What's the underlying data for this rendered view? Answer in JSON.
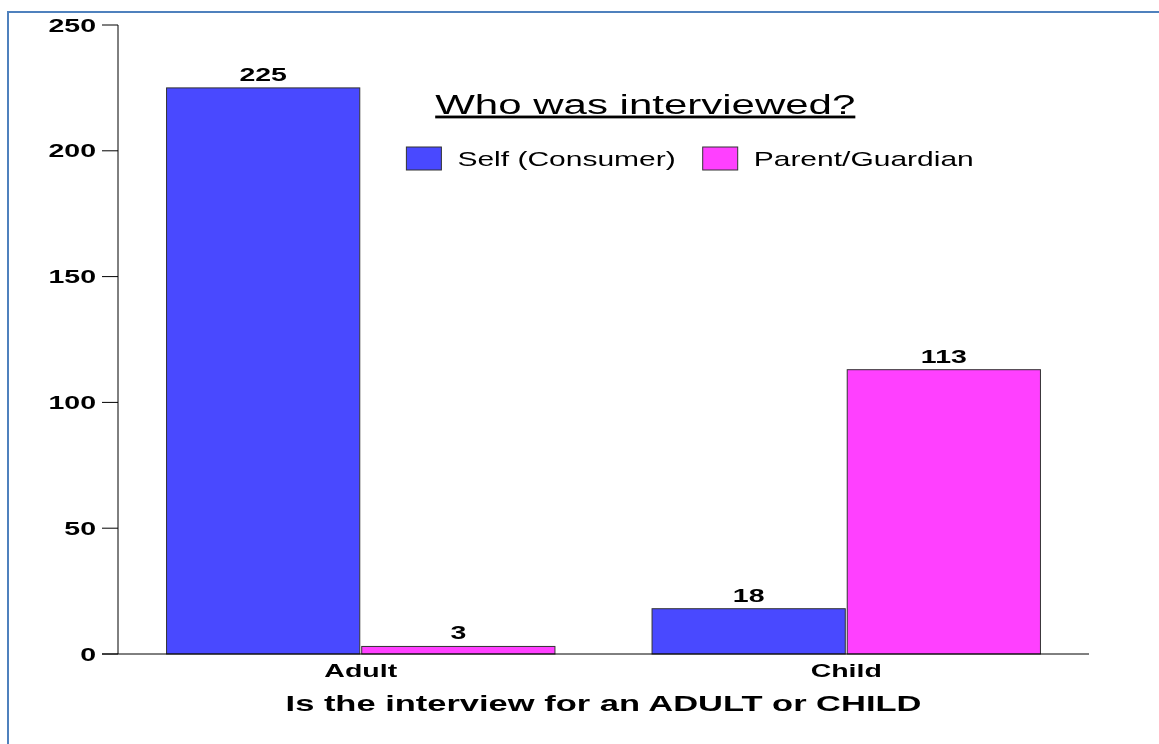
{
  "chart_data": {
    "type": "bar",
    "title": "Who was interviewed?",
    "xlabel": "Is the interview for an ADULT or CHILD",
    "categories": [
      "Adult",
      "Child"
    ],
    "series": [
      {
        "name": "Self (Consumer)",
        "color": "#4949ff",
        "values": [
          225,
          18
        ]
      },
      {
        "name": "Parent/Guardian",
        "color": "#ff40ff",
        "values": [
          3,
          113
        ]
      }
    ],
    "ylim": [
      0,
      250
    ],
    "yticks": [
      0,
      50,
      100,
      150,
      200,
      250
    ],
    "data_labels": true,
    "legend": "top"
  }
}
